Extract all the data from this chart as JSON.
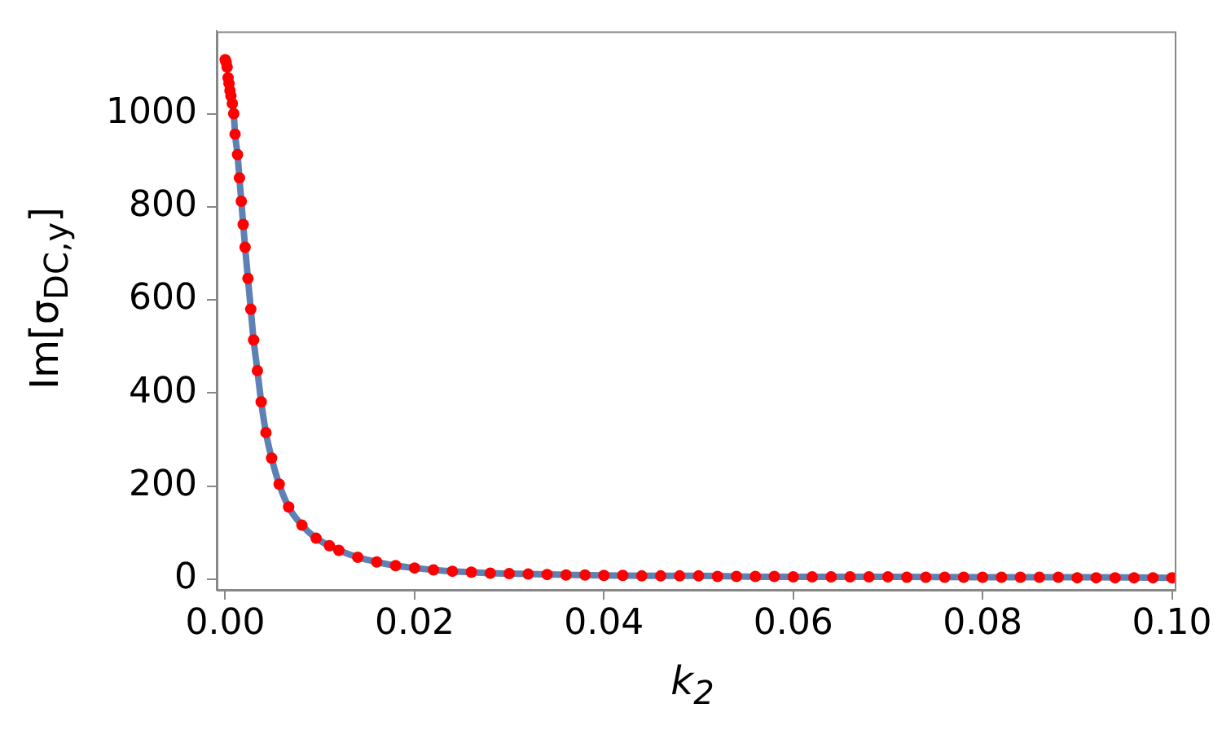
{
  "chart_data": {
    "type": "line",
    "xlabel": "k$_{2}$",
    "ylabel": "Im[σ$_{DC,y}$]",
    "xlim": [
      -0.0009,
      0.1003
    ],
    "ylim": [
      -23,
      1177
    ],
    "xticks": [
      {
        "value": 0,
        "label": "0.00"
      },
      {
        "value": 0.02,
        "label": "0.02"
      },
      {
        "value": 0.04,
        "label": "0.04"
      },
      {
        "value": 0.06,
        "label": "0.06"
      },
      {
        "value": 0.08,
        "label": "0.08"
      },
      {
        "value": 0.1,
        "label": "0.10"
      }
    ],
    "yticks": [
      0,
      200,
      400,
      600,
      800,
      1000
    ],
    "grid": false,
    "legend": false,
    "series": [
      {
        "type": "scatter",
        "color": "#ff0000",
        "marker": "circle",
        "x": [
          0.0,
          0.0001,
          0.0002,
          0.0003,
          0.0004,
          0.0005,
          0.0006,
          0.00075,
          0.0009,
          0.00104,
          0.0013,
          0.0015,
          0.0017,
          0.0019,
          0.0021,
          0.0024,
          0.0027,
          0.003,
          0.0034,
          0.0038,
          0.0043,
          0.0049,
          0.0057,
          0.0067,
          0.0081,
          0.0096,
          0.011,
          0.012,
          0.014,
          0.016,
          0.018,
          0.02,
          0.022,
          0.024,
          0.026,
          0.028,
          0.03,
          0.032,
          0.034,
          0.036,
          0.038,
          0.04,
          0.042,
          0.044,
          0.046,
          0.048,
          0.05,
          0.052,
          0.054,
          0.056,
          0.058,
          0.06,
          0.062,
          0.064,
          0.066,
          0.068,
          0.07,
          0.072,
          0.074,
          0.076,
          0.078,
          0.08,
          0.082,
          0.084,
          0.086,
          0.088,
          0.09,
          0.092,
          0.094,
          0.096,
          0.098,
          0.1
        ],
        "values": [
          1116,
          1110,
          1100,
          1077,
          1065,
          1050,
          1038,
          1022,
          1000,
          956,
          912,
          862,
          812,
          762,
          713,
          646,
          580,
          514,
          448,
          381,
          315,
          260,
          204,
          155,
          116,
          88,
          72,
          62,
          47,
          37,
          29,
          24,
          20,
          17,
          15,
          13,
          12,
          11,
          10,
          9,
          9,
          8,
          8,
          7,
          7,
          7,
          7,
          6,
          6,
          6,
          6,
          5,
          5,
          5,
          5,
          5,
          5,
          4,
          4,
          4,
          4,
          4,
          4,
          4,
          4,
          4,
          3,
          3,
          3,
          3,
          3,
          3
        ]
      },
      {
        "type": "line",
        "color": "#5e81b5",
        "marker": "none",
        "line_style": "solid",
        "x": [
          0.0005,
          0.00075,
          0.0009,
          0.00104,
          0.0013,
          0.0015,
          0.0017,
          0.0019,
          0.0021,
          0.0024,
          0.0027,
          0.003,
          0.0034,
          0.0038,
          0.0043,
          0.0049,
          0.0057,
          0.0067,
          0.0081,
          0.0096,
          0.011,
          0.012,
          0.014,
          0.016,
          0.018,
          0.02,
          0.022,
          0.024,
          0.026,
          0.028,
          0.03,
          0.035,
          0.04,
          0.05,
          0.06,
          0.07,
          0.08,
          0.09,
          0.1
        ],
        "values": [
          1050,
          1022,
          1000,
          956,
          912,
          862,
          812,
          762,
          713,
          646,
          580,
          514,
          448,
          381,
          315,
          260,
          204,
          155,
          116,
          88,
          72,
          62,
          47,
          37,
          29,
          24,
          20,
          17,
          15,
          13,
          12,
          10,
          8,
          7,
          5,
          5,
          4,
          4,
          3
        ]
      }
    ]
  }
}
